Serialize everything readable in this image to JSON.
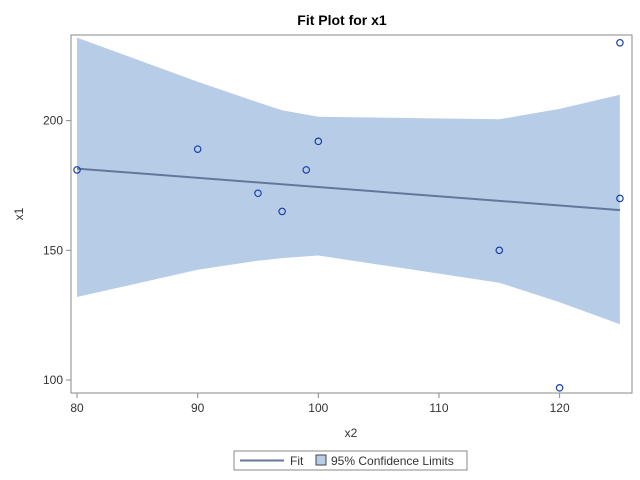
{
  "chart_data": {
    "type": "scatter",
    "title": "Fit Plot for x1",
    "xlabel": "x2",
    "ylabel": "x1",
    "xlim": [
      79.5,
      126
    ],
    "ylim": [
      95,
      233
    ],
    "xticks": [
      80,
      90,
      100,
      110,
      120
    ],
    "yticks": [
      100,
      150,
      200
    ],
    "grid": false,
    "legend_position": "bottom-center",
    "points": {
      "x": [
        80,
        90,
        95,
        97,
        99,
        100,
        115,
        120,
        125,
        125
      ],
      "y": [
        181,
        189,
        172,
        165,
        181,
        192,
        150,
        97,
        170,
        230
      ]
    },
    "fit": {
      "name": "Fit",
      "x": [
        80,
        125
      ],
      "y": [
        181.5,
        165.5
      ]
    },
    "confidence_band": {
      "name": "95% Confidence Limits",
      "x": [
        80,
        90,
        95,
        97,
        100,
        115,
        120,
        125
      ],
      "upper": [
        232,
        215,
        207,
        204,
        201.5,
        200.5,
        204.5,
        210
      ],
      "lower": [
        132,
        142.5,
        146,
        147,
        148,
        137.5,
        130,
        121.5
      ]
    },
    "colors": {
      "band": "#b7cde7",
      "fit_line": "#64779a",
      "marker": "#1a3fa8",
      "frame": "#8a8a8a"
    }
  }
}
